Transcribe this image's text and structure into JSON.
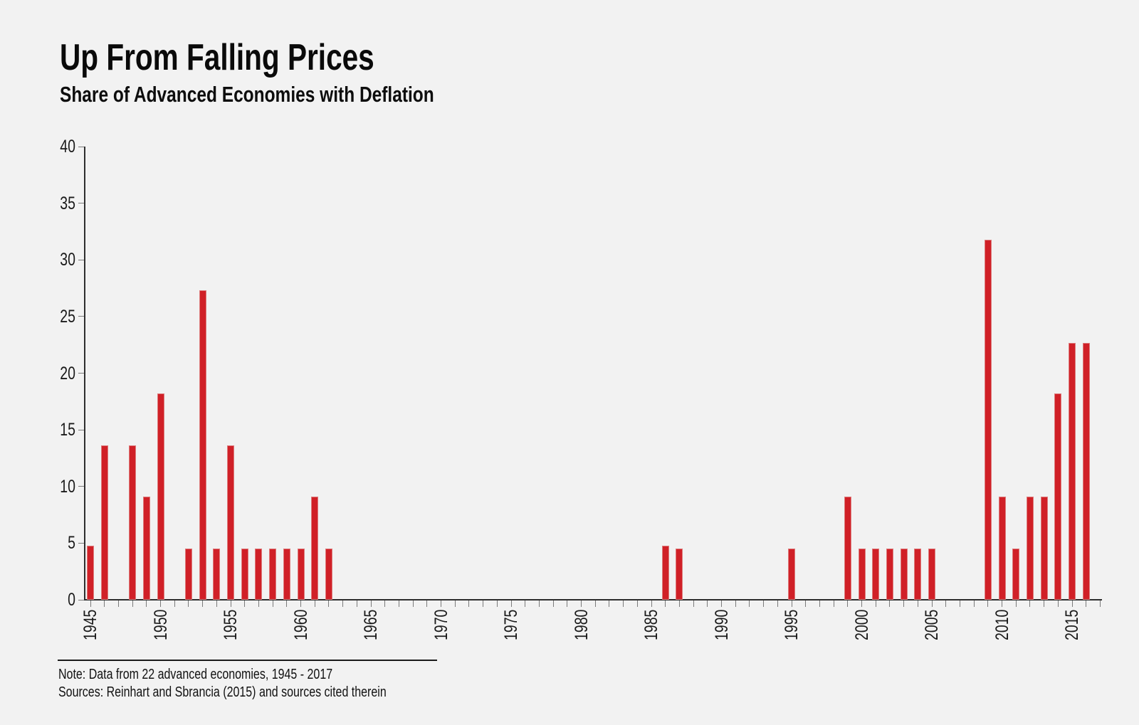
{
  "header": {
    "title": "Up From Falling Prices",
    "subtitle": "Share of Advanced Economies with Deflation"
  },
  "notes": {
    "line1": "Note: Data from 22 advanced economies, 1945 - 2017",
    "line2": "Sources: Reinhart and Sbrancia (2015) and sources cited therein"
  },
  "colors": {
    "background": "#f2f2f2",
    "bar": "#d02027",
    "bar_edge": "#dd7c7c",
    "axis": "#2e2e2e",
    "tick": "#7a7a7a",
    "text": "#1a1a1a"
  },
  "chart_data": {
    "type": "bar",
    "title": "Up From Falling Prices",
    "subtitle": "Share of Advanced Economies with Deflation",
    "xlabel": "",
    "ylabel": "",
    "ylim": [
      0,
      40
    ],
    "yticks": [
      0,
      5,
      10,
      15,
      20,
      25,
      30,
      35,
      40
    ],
    "x_range": [
      1945,
      2017
    ],
    "xtick_label_years": [
      1945,
      1950,
      1955,
      1960,
      1965,
      1970,
      1975,
      1980,
      1985,
      1990,
      1995,
      2000,
      2005,
      2010,
      2015
    ],
    "grid": false,
    "legend": false,
    "bar_color": "#d02027",
    "points": [
      {
        "year": 1945,
        "value": 4.8
      },
      {
        "year": 1946,
        "value": 13.6
      },
      {
        "year": 1948,
        "value": 13.6
      },
      {
        "year": 1949,
        "value": 9.1
      },
      {
        "year": 1950,
        "value": 18.2
      },
      {
        "year": 1952,
        "value": 4.5
      },
      {
        "year": 1953,
        "value": 27.3
      },
      {
        "year": 1954,
        "value": 4.5
      },
      {
        "year": 1955,
        "value": 13.6
      },
      {
        "year": 1956,
        "value": 4.5
      },
      {
        "year": 1957,
        "value": 4.5
      },
      {
        "year": 1958,
        "value": 4.5
      },
      {
        "year": 1959,
        "value": 4.5
      },
      {
        "year": 1960,
        "value": 4.5
      },
      {
        "year": 1961,
        "value": 9.1
      },
      {
        "year": 1962,
        "value": 4.5
      },
      {
        "year": 1986,
        "value": 4.8
      },
      {
        "year": 1987,
        "value": 4.5
      },
      {
        "year": 1995,
        "value": 4.5
      },
      {
        "year": 1999,
        "value": 9.1
      },
      {
        "year": 2000,
        "value": 4.5
      },
      {
        "year": 2001,
        "value": 4.5
      },
      {
        "year": 2002,
        "value": 4.5
      },
      {
        "year": 2003,
        "value": 4.5
      },
      {
        "year": 2004,
        "value": 4.5
      },
      {
        "year": 2005,
        "value": 4.5
      },
      {
        "year": 2009,
        "value": 31.8
      },
      {
        "year": 2010,
        "value": 9.1
      },
      {
        "year": 2011,
        "value": 4.5
      },
      {
        "year": 2012,
        "value": 9.1
      },
      {
        "year": 2013,
        "value": 9.1
      },
      {
        "year": 2014,
        "value": 18.2
      },
      {
        "year": 2015,
        "value": 22.7
      },
      {
        "year": 2016,
        "value": 22.7
      }
    ]
  }
}
